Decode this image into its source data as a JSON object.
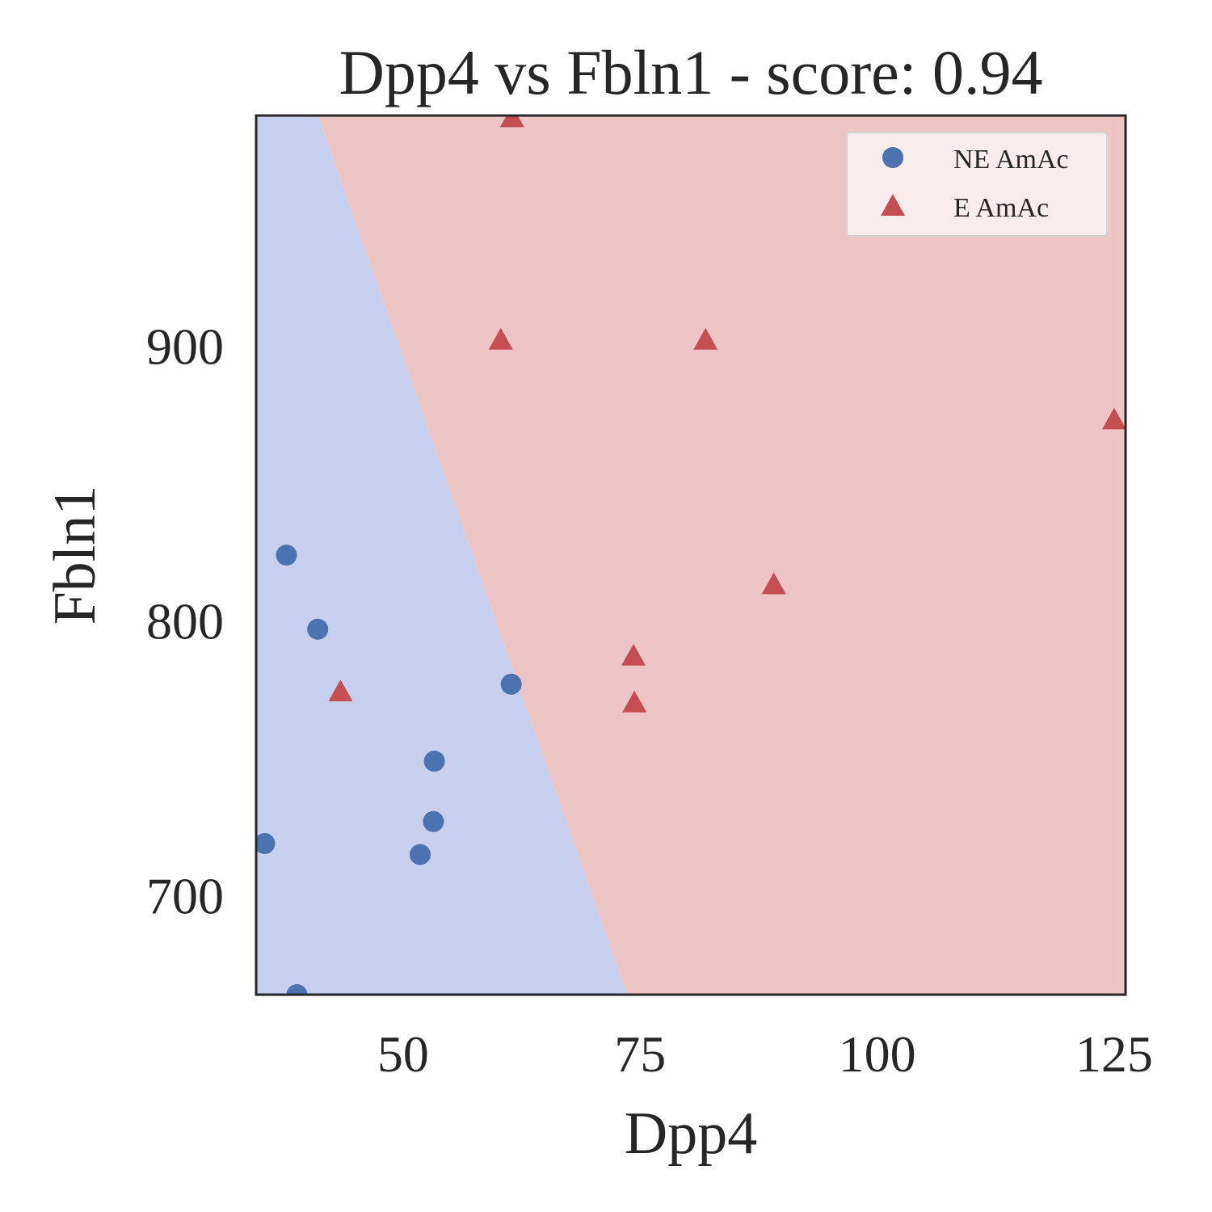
{
  "chart_data": {
    "type": "scatter",
    "title": "Dpp4 vs Fbln1 - score: 0.94",
    "xlabel": "Dpp4",
    "ylabel": "Fbln1",
    "xlim": [
      34.5,
      126.2
    ],
    "ylim": [
      664,
      984
    ],
    "xticks": [
      50,
      75,
      100,
      125
    ],
    "yticks": [
      700,
      800,
      900
    ],
    "grid": false,
    "legend_position": "top-right",
    "decision_boundary": {
      "points": [
        [
          40.9,
          984
        ],
        [
          73.8,
          664
        ]
      ],
      "left_region_class": "NE AmAc",
      "right_region_class": "E AmAc",
      "left_color": "#c8d0f0",
      "right_color": "#eec5c5"
    },
    "series": [
      {
        "name": "NE AmAc",
        "marker": "circle",
        "color": "#4c72b0",
        "points": [
          [
            35.4,
            719
          ],
          [
            37.7,
            824
          ],
          [
            41.0,
            797
          ],
          [
            38.8,
            664
          ],
          [
            51.8,
            715
          ],
          [
            53.2,
            727
          ],
          [
            53.3,
            749
          ],
          [
            61.4,
            777
          ]
        ]
      },
      {
        "name": "E AmAc",
        "marker": "triangle",
        "color": "#c44e52",
        "points": [
          [
            43.4,
            774
          ],
          [
            60.3,
            902
          ],
          [
            61.5,
            983
          ],
          [
            74.3,
            787
          ],
          [
            74.4,
            770
          ],
          [
            81.9,
            902
          ],
          [
            89.1,
            813
          ],
          [
            125.0,
            873
          ]
        ]
      }
    ]
  }
}
